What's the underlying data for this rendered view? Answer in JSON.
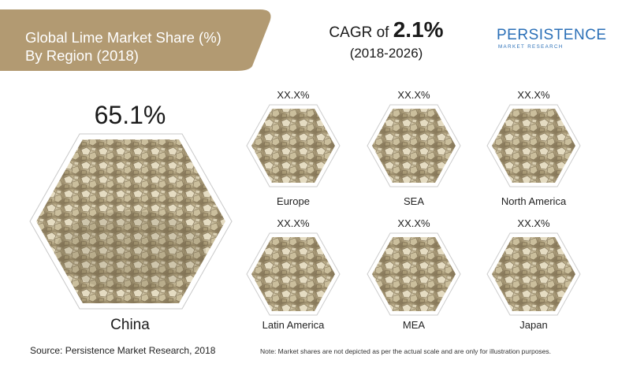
{
  "title": {
    "line1": "Global Lime Market Share (%)",
    "line2": "By Region (2018)"
  },
  "cagr": {
    "prefix": "CAGR of ",
    "value": "2.1%",
    "years": "(2018-2026)"
  },
  "logo": {
    "name": "PERSISTENCE",
    "tagline": "MARKET RESEARCH"
  },
  "featured_region": {
    "label": "China",
    "share": "65.1%"
  },
  "regions": [
    {
      "label": "Europe",
      "share": "XX.X%"
    },
    {
      "label": "SEA",
      "share": "XX.X%"
    },
    {
      "label": "North America",
      "share": "XX.X%"
    },
    {
      "label": "Latin America",
      "share": "XX.X%"
    },
    {
      "label": "MEA",
      "share": "XX.X%"
    },
    {
      "label": "Japan",
      "share": "XX.X%"
    }
  ],
  "source": "Source: Persistence Market Research, 2018",
  "note": "Note: Market shares are not depicted as per the actual scale and are only for illustration purposes.",
  "colors": {
    "banner": "#b29a72",
    "logo_blue": "#2a6fb7",
    "hex_border": "#ffffff"
  },
  "image_subject": "lime-stone-pile"
}
